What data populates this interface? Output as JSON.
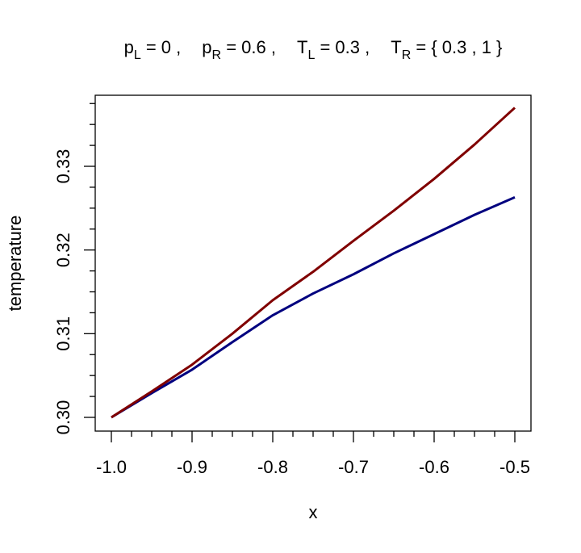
{
  "chart_data": {
    "type": "line",
    "title": [
      [
        "p",
        "L",
        " = 0 ,"
      ],
      [
        "p",
        "R",
        " = 0.6 ,"
      ],
      [
        "T",
        "L",
        " = 0.3 ,"
      ],
      [
        "T",
        "R",
        " =  { 0.3 , 1 }"
      ]
    ],
    "xlabel": "x",
    "ylabel": "temperature",
    "x": [
      -1,
      -0.95,
      -0.9,
      -0.85,
      -0.8,
      -0.75,
      -0.7,
      -0.65,
      -0.6,
      -0.55,
      -0.5
    ],
    "series": [
      {
        "color": "#00007f",
        "values": [
          0.3,
          0.3029,
          0.3057,
          0.309,
          0.3122,
          0.3148,
          0.3171,
          0.3196,
          0.3219,
          0.3242,
          0.3263
        ]
      },
      {
        "color": "#800000",
        "values": [
          0.3,
          0.3031,
          0.3063,
          0.31,
          0.314,
          0.3174,
          0.3211,
          0.3247,
          0.3285,
          0.3326,
          0.337
        ]
      }
    ],
    "xlim": [
      -1.02,
      -0.48
    ],
    "ylim": [
      0.29836,
      0.33849
    ],
    "xticks": [
      {
        "value": -1,
        "label": "-1.0"
      },
      -0.9,
      -0.8,
      -0.7,
      -0.6,
      -0.5
    ],
    "yticks": [
      {
        "value": 0.3,
        "label": "0.30"
      },
      0.31,
      0.32,
      0.33
    ],
    "x_minor_ticks": [
      -0.975,
      -0.95,
      -0.925,
      -0.875,
      -0.85,
      -0.825,
      -0.775,
      -0.75,
      -0.725,
      -0.675,
      -0.65,
      -0.625,
      -0.575,
      -0.55,
      -0.525
    ],
    "y_minor_ticks": [
      0.3025,
      0.305,
      0.3075,
      0.3125,
      0.315,
      0.3175,
      0.3225,
      0.325,
      0.3275,
      0.3325,
      0.335,
      0.3375
    ],
    "grid": false
  }
}
